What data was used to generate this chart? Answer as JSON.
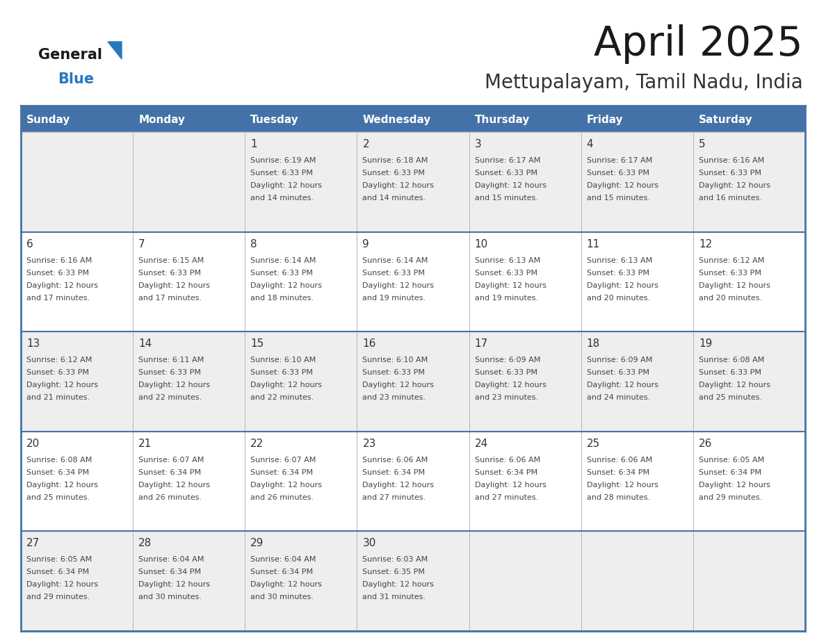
{
  "title": "April 2025",
  "subtitle": "Mettupalayam, Tamil Nadu, India",
  "days_of_week": [
    "Sunday",
    "Monday",
    "Tuesday",
    "Wednesday",
    "Thursday",
    "Friday",
    "Saturday"
  ],
  "header_bg_color": "#4472a8",
  "header_text_color": "#ffffff",
  "row_bg_light": "#eeeeee",
  "row_bg_white": "#ffffff",
  "cell_border_color": "#4472a8",
  "day_number_color": "#333333",
  "text_color": "#444444",
  "title_color": "#1a1a1a",
  "subtitle_color": "#333333",
  "logo_general_color": "#1a1a1a",
  "logo_blue_color": "#2878be",
  "weeks": [
    [
      {
        "day": null,
        "sunrise": null,
        "sunset": null,
        "daylight_min": null
      },
      {
        "day": null,
        "sunrise": null,
        "sunset": null,
        "daylight_min": null
      },
      {
        "day": 1,
        "sunrise": "6:19 AM",
        "sunset": "6:33 PM",
        "daylight_min": 14
      },
      {
        "day": 2,
        "sunrise": "6:18 AM",
        "sunset": "6:33 PM",
        "daylight_min": 14
      },
      {
        "day": 3,
        "sunrise": "6:17 AM",
        "sunset": "6:33 PM",
        "daylight_min": 15
      },
      {
        "day": 4,
        "sunrise": "6:17 AM",
        "sunset": "6:33 PM",
        "daylight_min": 15
      },
      {
        "day": 5,
        "sunrise": "6:16 AM",
        "sunset": "6:33 PM",
        "daylight_min": 16
      }
    ],
    [
      {
        "day": 6,
        "sunrise": "6:16 AM",
        "sunset": "6:33 PM",
        "daylight_min": 17
      },
      {
        "day": 7,
        "sunrise": "6:15 AM",
        "sunset": "6:33 PM",
        "daylight_min": 17
      },
      {
        "day": 8,
        "sunrise": "6:14 AM",
        "sunset": "6:33 PM",
        "daylight_min": 18
      },
      {
        "day": 9,
        "sunrise": "6:14 AM",
        "sunset": "6:33 PM",
        "daylight_min": 19
      },
      {
        "day": 10,
        "sunrise": "6:13 AM",
        "sunset": "6:33 PM",
        "daylight_min": 19
      },
      {
        "day": 11,
        "sunrise": "6:13 AM",
        "sunset": "6:33 PM",
        "daylight_min": 20
      },
      {
        "day": 12,
        "sunrise": "6:12 AM",
        "sunset": "6:33 PM",
        "daylight_min": 20
      }
    ],
    [
      {
        "day": 13,
        "sunrise": "6:12 AM",
        "sunset": "6:33 PM",
        "daylight_min": 21
      },
      {
        "day": 14,
        "sunrise": "6:11 AM",
        "sunset": "6:33 PM",
        "daylight_min": 22
      },
      {
        "day": 15,
        "sunrise": "6:10 AM",
        "sunset": "6:33 PM",
        "daylight_min": 22
      },
      {
        "day": 16,
        "sunrise": "6:10 AM",
        "sunset": "6:33 PM",
        "daylight_min": 23
      },
      {
        "day": 17,
        "sunrise": "6:09 AM",
        "sunset": "6:33 PM",
        "daylight_min": 23
      },
      {
        "day": 18,
        "sunrise": "6:09 AM",
        "sunset": "6:33 PM",
        "daylight_min": 24
      },
      {
        "day": 19,
        "sunrise": "6:08 AM",
        "sunset": "6:33 PM",
        "daylight_min": 25
      }
    ],
    [
      {
        "day": 20,
        "sunrise": "6:08 AM",
        "sunset": "6:34 PM",
        "daylight_min": 25
      },
      {
        "day": 21,
        "sunrise": "6:07 AM",
        "sunset": "6:34 PM",
        "daylight_min": 26
      },
      {
        "day": 22,
        "sunrise": "6:07 AM",
        "sunset": "6:34 PM",
        "daylight_min": 26
      },
      {
        "day": 23,
        "sunrise": "6:06 AM",
        "sunset": "6:34 PM",
        "daylight_min": 27
      },
      {
        "day": 24,
        "sunrise": "6:06 AM",
        "sunset": "6:34 PM",
        "daylight_min": 27
      },
      {
        "day": 25,
        "sunrise": "6:06 AM",
        "sunset": "6:34 PM",
        "daylight_min": 28
      },
      {
        "day": 26,
        "sunrise": "6:05 AM",
        "sunset": "6:34 PM",
        "daylight_min": 29
      }
    ],
    [
      {
        "day": 27,
        "sunrise": "6:05 AM",
        "sunset": "6:34 PM",
        "daylight_min": 29
      },
      {
        "day": 28,
        "sunrise": "6:04 AM",
        "sunset": "6:34 PM",
        "daylight_min": 30
      },
      {
        "day": 29,
        "sunrise": "6:04 AM",
        "sunset": "6:34 PM",
        "daylight_min": 30
      },
      {
        "day": 30,
        "sunrise": "6:03 AM",
        "sunset": "6:35 PM",
        "daylight_min": 31
      },
      {
        "day": null,
        "sunrise": null,
        "sunset": null,
        "daylight_min": null
      },
      {
        "day": null,
        "sunrise": null,
        "sunset": null,
        "daylight_min": null
      },
      {
        "day": null,
        "sunrise": null,
        "sunset": null,
        "daylight_min": null
      }
    ]
  ],
  "row_colors": [
    "#eeeeee",
    "#ffffff",
    "#eeeeee",
    "#ffffff",
    "#eeeeee"
  ]
}
